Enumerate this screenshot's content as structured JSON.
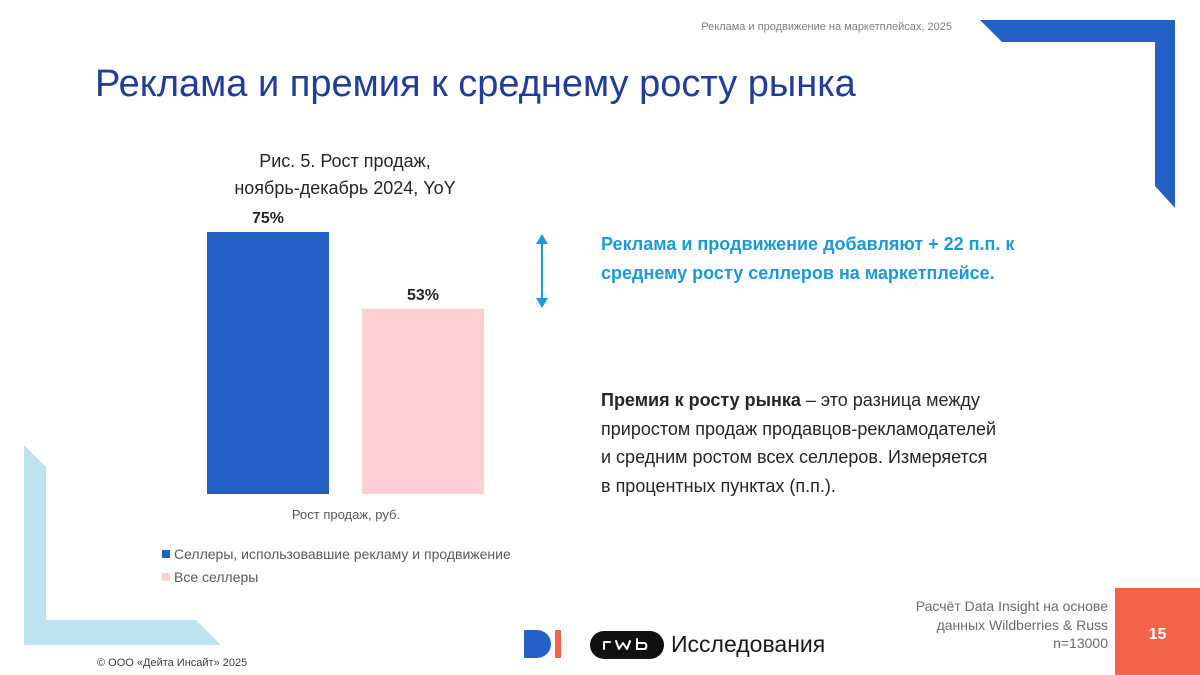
{
  "header": {
    "note": "Реклама и продвижение на маркетплейсах, 2025",
    "title": "Реклама и премия к среднему росту рынка"
  },
  "chart_data": {
    "type": "bar",
    "title_line1": "Рис. 5. Рост продаж,",
    "title_line2": "ноябрь-декабрь 2024, YoY",
    "categories": [
      "Рост продаж, руб."
    ],
    "xlabel": "Рост продаж, руб.",
    "ylim": [
      0,
      75
    ],
    "series": [
      {
        "name": "Селлеры, использовавшие рекламу и продвижение",
        "values": [
          75
        ],
        "label": "75%",
        "color": "#2461c6"
      },
      {
        "name": "Все селлеры",
        "values": [
          53
        ],
        "label": "53%",
        "color": "#ffcfd3"
      }
    ],
    "legend": "bottom-left",
    "grid": false
  },
  "highlight": {
    "text": "Реклама и продвижение добавляют + 22 п.п. к среднему росту селлеров на маркетплейсе.",
    "arrow_icon": "double-arrow-vertical-icon",
    "color": "#1a9ad9"
  },
  "definition": {
    "term": "Премия к росту рынка",
    "rest": " – это разница между приростом продаж продавцов-рекламодателей и средним ростом всех селлеров. Измеряется в процентных пунктах (п.п.)."
  },
  "source": {
    "line1": "Расчёт Data Insight на основе",
    "line2": "данных Wildberries & Russ",
    "line3": "n=13000"
  },
  "page_number": "15",
  "copyright": "© ООО «Дейта Инсайт» 2025",
  "logos": {
    "di_icon": "data-insight-logo-icon",
    "rwb_icon": "rwb-logo-icon",
    "rwb_text": "Исследования"
  },
  "colors": {
    "title": "#1f3d99",
    "accent_blue": "#2461c6",
    "accent_pink": "#ffcfd3",
    "corner_light": "#bde3ef",
    "page_box": "#f26347"
  }
}
